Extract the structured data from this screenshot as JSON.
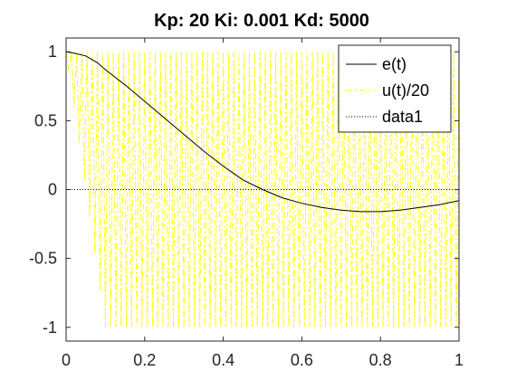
{
  "chart_data": {
    "type": "line",
    "title": "Kp: 20  Ki: 0.001  Kd: 5000",
    "xlabel": "",
    "ylabel": "",
    "xlim": [
      0,
      1
    ],
    "ylim": [
      -1.1,
      1.1
    ],
    "x_ticks": [
      0,
      0.2,
      0.4,
      0.6,
      0.8,
      1
    ],
    "x_tick_labels": [
      "0",
      "0.2",
      "0.4",
      "0.6",
      "0.8",
      "1"
    ],
    "y_ticks": [
      1,
      0.5,
      0,
      -0.5,
      -1
    ],
    "y_tick_labels": [
      "1",
      "0.5",
      "0",
      "-0.5",
      "-1"
    ],
    "grid": false,
    "legend_position": "top-right",
    "series": [
      {
        "name": "e(t)",
        "color": "#000000",
        "style": "solid",
        "x": [
          0,
          0.02,
          0.05,
          0.08,
          0.1,
          0.15,
          0.2,
          0.25,
          0.3,
          0.35,
          0.4,
          0.45,
          0.5,
          0.55,
          0.6,
          0.65,
          0.7,
          0.75,
          0.8,
          0.85,
          0.9,
          0.95,
          1.0
        ],
        "y": [
          1.0,
          0.99,
          0.97,
          0.92,
          0.87,
          0.76,
          0.64,
          0.52,
          0.4,
          0.28,
          0.17,
          0.07,
          0.0,
          -0.06,
          -0.1,
          -0.13,
          -0.15,
          -0.16,
          -0.16,
          -0.15,
          -0.13,
          -0.11,
          -0.08
        ]
      },
      {
        "name": "u(t)/20",
        "color": "#ffff00",
        "style": "dashdot",
        "oscillating": true,
        "envelope_upper": 1.0,
        "envelope_lower": -1.0,
        "transition_x": [
          0.0,
          0.04,
          0.09,
          0.1
        ],
        "transition_lower": [
          1.0,
          0.2,
          -0.8,
          -1.0
        ]
      },
      {
        "name": "data1",
        "color": "#000000",
        "style": "dotted",
        "x": [
          0,
          1
        ],
        "y": [
          0,
          0
        ]
      }
    ]
  }
}
